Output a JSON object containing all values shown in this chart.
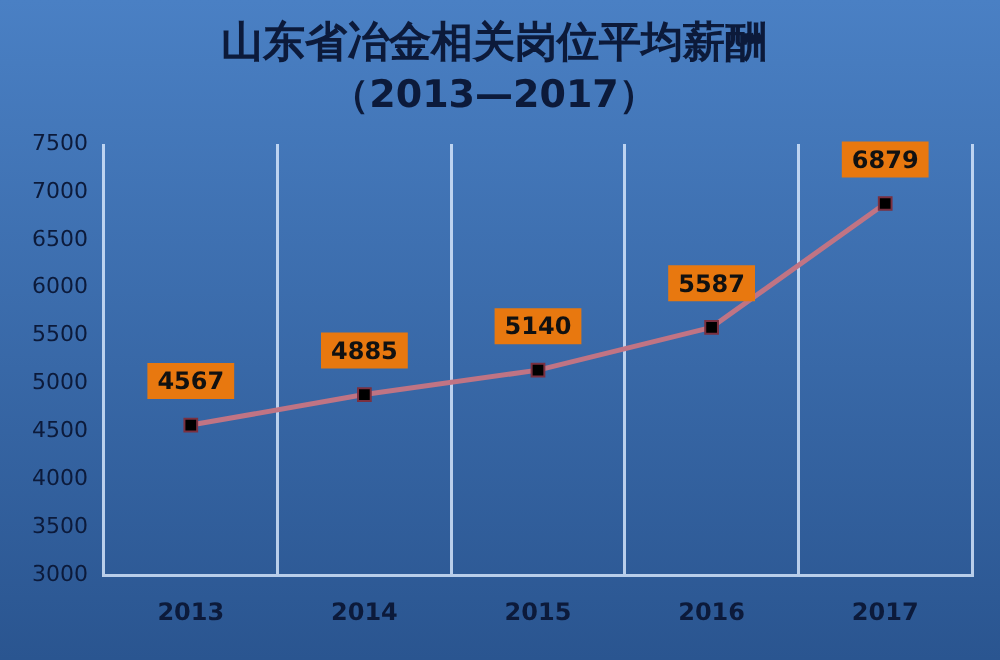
{
  "chart_data": {
    "type": "line",
    "title": "山东省冶金相关岗位平均薪酬",
    "subtitle": "（2013—2017）",
    "categories": [
      "2013",
      "2014",
      "2015",
      "2016",
      "2017"
    ],
    "series": [
      {
        "color": "#c07484",
        "values": [
          4567,
          4885,
          5140,
          5587,
          6879
        ]
      }
    ],
    "ylim": [
      3000,
      7500
    ],
    "yticks": [
      3000,
      3500,
      4000,
      4500,
      5000,
      5500,
      6000,
      6500,
      7000,
      7500
    ],
    "grid": "x",
    "legend": false,
    "marker": "square",
    "line_style": "solid",
    "data_labels": true
  }
}
